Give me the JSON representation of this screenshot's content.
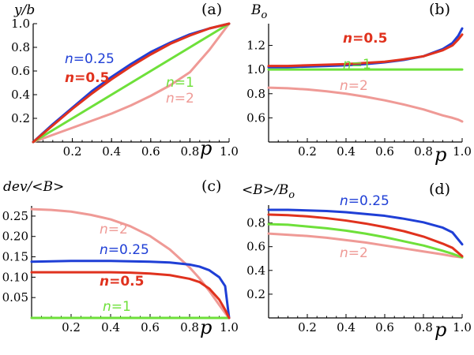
{
  "chart_data": [
    {
      "type": "line",
      "panel_label": "(a)",
      "ylabel": "y/b",
      "xlabel": "p",
      "xlim": [
        0,
        1
      ],
      "ylim": [
        0,
        1.0
      ],
      "xticks": [
        0.2,
        0.4,
        0.6,
        0.8,
        1.0
      ],
      "yticks": [
        0.2,
        0.4,
        0.6,
        0.8,
        1.0
      ],
      "xtick_labels": [
        "0.2",
        "0.4",
        "0.6",
        "0.8",
        "1.0"
      ],
      "ytick_labels": [
        "0.2",
        "0.4",
        "0.6",
        "0.8",
        "1.0"
      ],
      "x": [
        0,
        0.1,
        0.2,
        0.3,
        0.4,
        0.5,
        0.6,
        0.7,
        0.8,
        0.9,
        1.0
      ],
      "series": [
        {
          "name": "n=0.25",
          "color": "#1f3fd6",
          "values": [
            0,
            0.15,
            0.29,
            0.43,
            0.55,
            0.66,
            0.76,
            0.84,
            0.91,
            0.96,
            1.0
          ]
        },
        {
          "name": "n=0.5",
          "color": "#e0321e",
          "values": [
            0,
            0.14,
            0.28,
            0.41,
            0.53,
            0.64,
            0.74,
            0.83,
            0.9,
            0.96,
            1.0
          ]
        },
        {
          "name": "n=1",
          "color": "#6ee03a",
          "values": [
            0,
            0.1,
            0.2,
            0.3,
            0.4,
            0.5,
            0.6,
            0.7,
            0.8,
            0.9,
            1.0
          ]
        },
        {
          "name": "n=2",
          "color": "#ef9a96",
          "values": [
            0,
            0.06,
            0.12,
            0.18,
            0.24,
            0.31,
            0.39,
            0.48,
            0.59,
            0.78,
            1.0
          ]
        }
      ],
      "annotations": [
        {
          "text": "n=0.25",
          "series": "n=0.25"
        },
        {
          "text": "n=0.5",
          "series": "n=0.5",
          "bold": true
        },
        {
          "text": "n=1",
          "series": "n=1"
        },
        {
          "text": "n=2",
          "series": "n=2"
        }
      ]
    },
    {
      "type": "line",
      "panel_label": "(b)",
      "ylabel": "B",
      "ylabel_sub": "o",
      "xlabel": "p",
      "xlim": [
        0,
        1
      ],
      "ylim": [
        0.4,
        1.38
      ],
      "xticks": [
        0.2,
        0.4,
        0.6,
        0.8,
        1.0
      ],
      "yticks": [
        0.6,
        0.8,
        1.0,
        1.2
      ],
      "xtick_labels": [
        "0.2",
        "0.4",
        "0.6",
        "0.8",
        "1.0"
      ],
      "ytick_labels": [
        "0.6",
        "0.8",
        "1.0",
        "1.2"
      ],
      "x": [
        0,
        0.1,
        0.2,
        0.3,
        0.4,
        0.5,
        0.6,
        0.7,
        0.8,
        0.9,
        0.95,
        0.98,
        1.0
      ],
      "series": [
        {
          "name": "n=0.25",
          "color": "#1f3fd6",
          "values": [
            1.02,
            1.02,
            1.025,
            1.03,
            1.035,
            1.045,
            1.06,
            1.08,
            1.11,
            1.17,
            1.22,
            1.28,
            1.34
          ]
        },
        {
          "name": "n=0.5",
          "color": "#e0321e",
          "values": [
            1.03,
            1.03,
            1.035,
            1.04,
            1.045,
            1.055,
            1.065,
            1.085,
            1.11,
            1.16,
            1.2,
            1.25,
            1.29
          ]
        },
        {
          "name": "n=1",
          "color": "#6ee03a",
          "values": [
            1.0,
            1.0,
            1.0,
            1.0,
            1.0,
            1.0,
            1.0,
            1.0,
            1.0,
            1.0,
            1.0,
            1.0,
            1.0
          ]
        },
        {
          "name": "n=2",
          "color": "#ef9a96",
          "values": [
            0.85,
            0.845,
            0.835,
            0.82,
            0.8,
            0.775,
            0.745,
            0.71,
            0.67,
            0.62,
            0.6,
            0.585,
            0.57
          ]
        }
      ],
      "annotations": [
        {
          "text": "n=0.5",
          "series": "n=0.5",
          "bold": true
        },
        {
          "text": "n=1",
          "series": "n=1"
        },
        {
          "text": "n=2",
          "series": "n=2"
        }
      ]
    },
    {
      "type": "line",
      "panel_label": "(c)",
      "ylabel": "dev/<B>",
      "xlabel": "p",
      "xlim": [
        0,
        1
      ],
      "ylim": [
        0,
        0.275
      ],
      "xticks": [
        0.2,
        0.4,
        0.6,
        0.8,
        1.0
      ],
      "yticks": [
        0.05,
        0.1,
        0.15,
        0.2,
        0.25
      ],
      "xtick_labels": [
        "0.2",
        "0.4",
        "0.6",
        "0.8",
        "1.0"
      ],
      "ytick_labels": [
        "0.05",
        "0.10",
        "0.15",
        "0.20",
        "0.25"
      ],
      "x": [
        0,
        0.1,
        0.2,
        0.3,
        0.4,
        0.5,
        0.6,
        0.7,
        0.8,
        0.85,
        0.9,
        0.95,
        0.98,
        1.0
      ],
      "series": [
        {
          "name": "n=0.25",
          "color": "#1f3fd6",
          "values": [
            0.138,
            0.139,
            0.14,
            0.14,
            0.14,
            0.139,
            0.138,
            0.136,
            0.131,
            0.126,
            0.117,
            0.1,
            0.078,
            0.0
          ]
        },
        {
          "name": "n=0.5",
          "color": "#e0321e",
          "values": [
            0.112,
            0.112,
            0.112,
            0.112,
            0.112,
            0.111,
            0.109,
            0.105,
            0.096,
            0.088,
            0.072,
            0.045,
            0.02,
            0.0
          ]
        },
        {
          "name": "n=1",
          "color": "#6ee03a",
          "values": [
            0,
            0,
            0,
            0,
            0,
            0,
            0,
            0,
            0,
            0,
            0,
            0,
            0,
            0
          ]
        },
        {
          "name": "n=2",
          "color": "#ef9a96",
          "values": [
            0.267,
            0.265,
            0.261,
            0.253,
            0.242,
            0.225,
            0.201,
            0.168,
            0.124,
            0.097,
            0.066,
            0.032,
            0.012,
            0.0
          ]
        }
      ],
      "annotations": [
        {
          "text": "n=2",
          "series": "n=2"
        },
        {
          "text": "n=0.25",
          "series": "n=0.25"
        },
        {
          "text": "n=0.5",
          "series": "n=0.5",
          "bold": true
        },
        {
          "text": "n=1",
          "series": "n=1"
        }
      ]
    },
    {
      "type": "line",
      "panel_label": "(d)",
      "ylabel": "<B>/B",
      "ylabel_sub": "o",
      "xlabel": "p",
      "xlim": [
        0,
        1
      ],
      "ylim": [
        0,
        0.95
      ],
      "xticks": [
        0.2,
        0.4,
        0.6,
        0.8,
        1.0
      ],
      "yticks": [
        0.2,
        0.4,
        0.6,
        0.8
      ],
      "xtick_labels": [
        "0.2",
        "0.4",
        "0.6",
        "0.8",
        "1.0"
      ],
      "ytick_labels": [
        "0.2",
        "0.4",
        "0.6",
        "0.8"
      ],
      "x": [
        0,
        0.1,
        0.2,
        0.3,
        0.4,
        0.5,
        0.6,
        0.7,
        0.8,
        0.9,
        0.95,
        1.0
      ],
      "series": [
        {
          "name": "n=0.25",
          "color": "#1f3fd6",
          "values": [
            0.91,
            0.91,
            0.905,
            0.9,
            0.89,
            0.875,
            0.86,
            0.835,
            0.805,
            0.76,
            0.72,
            0.62
          ]
        },
        {
          "name": "n=0.5",
          "color": "#e0321e",
          "values": [
            0.87,
            0.865,
            0.855,
            0.84,
            0.82,
            0.795,
            0.765,
            0.73,
            0.685,
            0.625,
            0.59,
            0.52
          ]
        },
        {
          "name": "n=1",
          "color": "#6ee03a",
          "values": [
            0.79,
            0.785,
            0.77,
            0.755,
            0.735,
            0.71,
            0.68,
            0.645,
            0.61,
            0.565,
            0.54,
            0.51
          ]
        },
        {
          "name": "n=2",
          "color": "#ef9a96",
          "values": [
            0.71,
            0.7,
            0.69,
            0.675,
            0.655,
            0.635,
            0.61,
            0.585,
            0.56,
            0.535,
            0.52,
            0.51
          ]
        }
      ],
      "annotations": [
        {
          "text": "n=0.25",
          "series": "n=0.25"
        },
        {
          "text": "n=2",
          "series": "n=2"
        }
      ]
    }
  ]
}
